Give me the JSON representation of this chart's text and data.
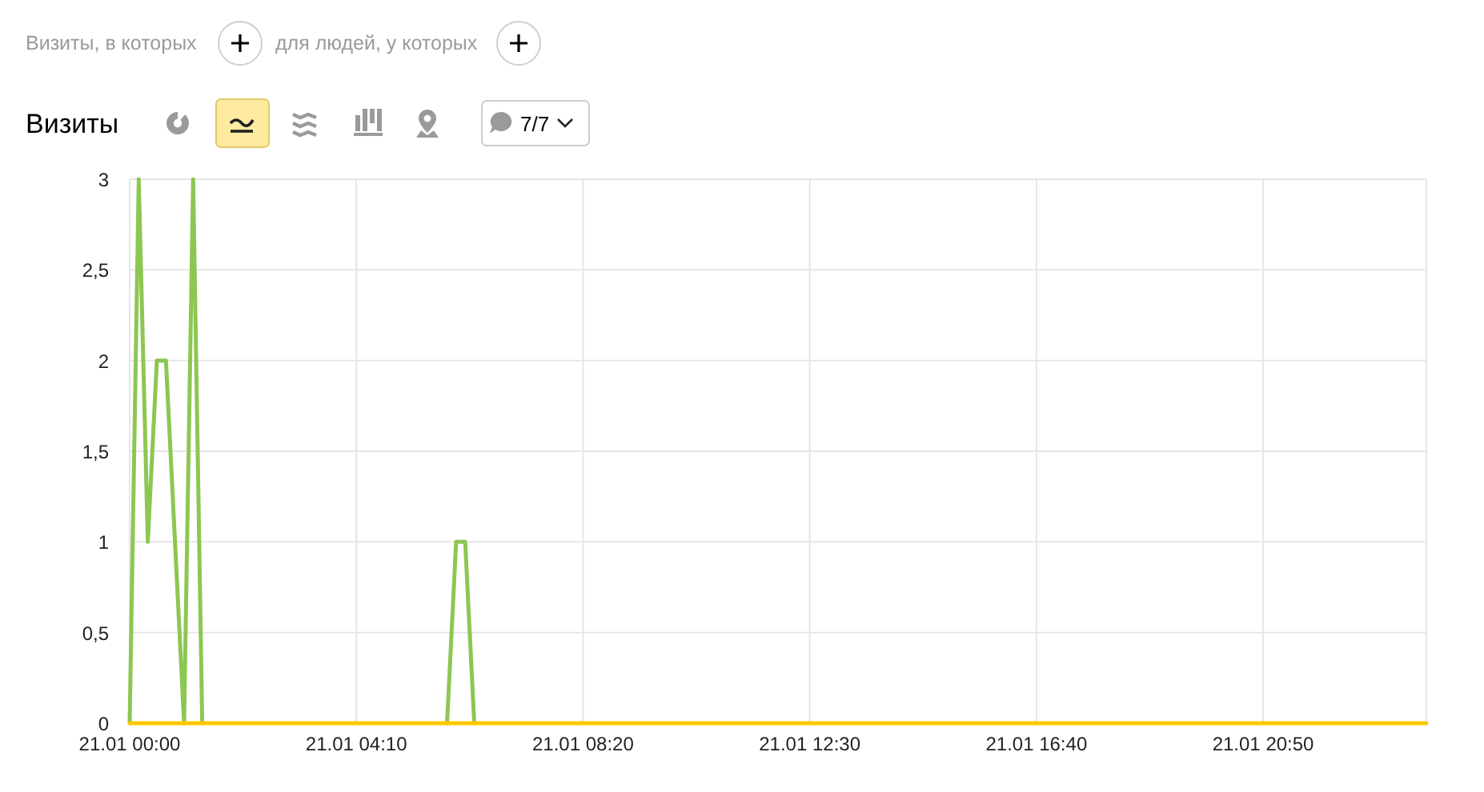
{
  "chart_data": {
    "type": "line",
    "title": "Визиты",
    "annotations": [
      "Визиты, в которых",
      "для людей, у которых",
      "7/7"
    ],
    "categories": [
      "21.01 00:00",
      null,
      null,
      null,
      null,
      null,
      null,
      null,
      null,
      null,
      null,
      null,
      null,
      null,
      null,
      null,
      null,
      null,
      null,
      null,
      null,
      null,
      null,
      null,
      null,
      "21.01 04:10",
      null,
      null,
      null,
      null,
      null,
      null,
      null,
      null,
      null,
      null,
      null,
      null,
      null,
      null,
      null,
      null,
      null,
      null,
      null,
      null,
      null,
      null,
      null,
      null,
      "21.01 08:20",
      null,
      null,
      null,
      null,
      null,
      null,
      null,
      null,
      null,
      null,
      null,
      null,
      null,
      null,
      null,
      null,
      null,
      null,
      null,
      null,
      null,
      null,
      null,
      null,
      "21.01 12:30",
      null,
      null,
      null,
      null,
      null,
      null,
      null,
      null,
      null,
      null,
      null,
      null,
      null,
      null,
      null,
      null,
      null,
      null,
      null,
      null,
      null,
      null,
      null,
      null,
      "21.01 16:40",
      null,
      null,
      null,
      null,
      null,
      null,
      null,
      null,
      null,
      null,
      null,
      null,
      null,
      null,
      null,
      null,
      null,
      null,
      null,
      null,
      null,
      null,
      null,
      null,
      "21.01 20:50",
      null,
      null,
      null,
      null,
      null,
      null,
      null,
      null,
      null,
      null,
      null,
      null,
      null,
      null,
      null,
      null,
      null,
      null
    ],
    "series": [
      {
        "color": "#8cc751",
        "values": [
          0,
          3,
          1,
          2,
          2,
          1,
          0,
          3,
          0,
          null,
          null,
          null,
          null,
          null,
          null,
          null,
          null,
          null,
          null,
          null,
          null,
          null,
          null,
          null,
          null,
          null,
          null,
          null,
          null,
          null,
          null,
          null,
          null,
          null,
          null,
          0,
          1,
          1,
          0,
          null,
          null,
          null,
          null,
          null,
          null,
          null,
          null,
          null,
          null,
          null,
          null,
          null,
          null,
          null,
          null,
          null,
          null,
          null,
          null,
          null,
          null,
          null,
          null,
          null,
          null,
          null,
          null,
          null,
          null,
          null,
          null,
          null,
          null,
          null,
          null,
          null,
          null,
          null,
          null,
          null,
          null,
          null,
          null,
          null,
          null,
          null,
          null,
          null,
          null,
          null,
          null,
          null,
          null,
          null,
          null,
          null,
          null,
          null,
          null,
          null,
          null,
          null,
          null,
          null,
          null,
          null,
          null,
          null,
          null,
          null,
          null,
          null,
          null,
          null,
          null,
          null,
          null,
          null,
          null,
          null,
          null,
          null,
          null,
          null,
          null,
          null,
          null,
          null,
          null,
          null,
          null,
          null,
          null,
          null,
          null,
          null,
          null,
          null,
          null,
          null,
          null,
          null,
          null,
          null
        ]
      },
      {
        "color": "#fcc800",
        "values": [
          0,
          0,
          0,
          0,
          0,
          0,
          0,
          0,
          0,
          0,
          0,
          0,
          0,
          0,
          0,
          0,
          0,
          0,
          0,
          0,
          0,
          0,
          0,
          0,
          0,
          0,
          0,
          0,
          0,
          0,
          0,
          0,
          0,
          0,
          0,
          0,
          0,
          0,
          0,
          0,
          0,
          0,
          0,
          0,
          0,
          0,
          0,
          0,
          0,
          0,
          0,
          0,
          0,
          0,
          0,
          0,
          0,
          0,
          0,
          0,
          0,
          0,
          0,
          0,
          0,
          0,
          0,
          0,
          0,
          0,
          0,
          0,
          0,
          0,
          0,
          0,
          0,
          0,
          0,
          0,
          0,
          0,
          0,
          0,
          0,
          0,
          0,
          0,
          0,
          0,
          0,
          0,
          0,
          0,
          0,
          0,
          0,
          0,
          0,
          0,
          0,
          0,
          0,
          0,
          0,
          0,
          0,
          0,
          0,
          0,
          0,
          0,
          0,
          0,
          0,
          0,
          0,
          0,
          0,
          0,
          0,
          0,
          0,
          0,
          0,
          0,
          0,
          0,
          0,
          0,
          0,
          0,
          0,
          0,
          0,
          0,
          0,
          0,
          0,
          0,
          0,
          0,
          0,
          0
        ]
      }
    ],
    "ylim": [
      0,
      3
    ],
    "yticks": [
      0,
      {
        "value": 0.5,
        "label": "0,5"
      },
      1,
      {
        "value": 1.5,
        "label": "1,5"
      },
      2,
      {
        "value": 2.5,
        "label": "2,5"
      },
      3
    ],
    "grid": true
  }
}
